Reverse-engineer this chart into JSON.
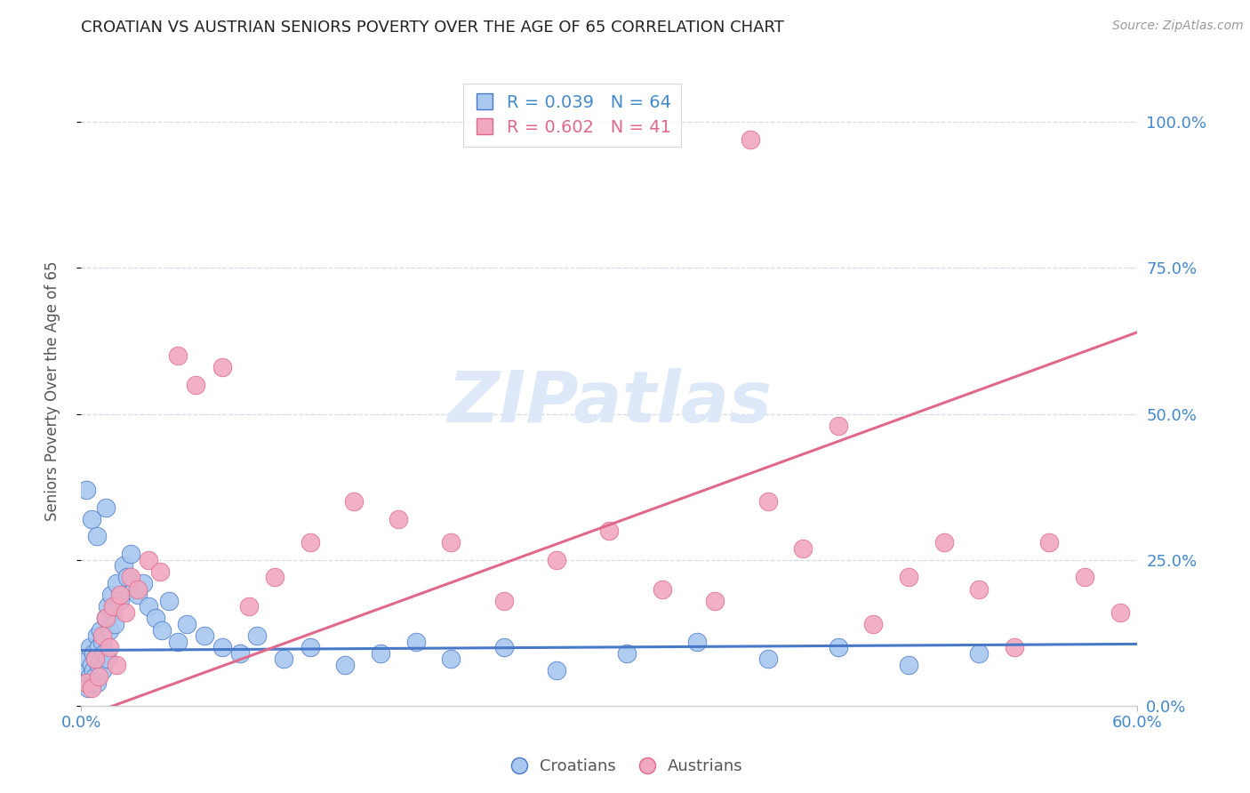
{
  "title": "CROATIAN VS AUSTRIAN SENIORS POVERTY OVER THE AGE OF 65 CORRELATION CHART",
  "source": "Source: ZipAtlas.com",
  "ylabel": "Seniors Poverty Over the Age of 65",
  "yticks_right": [
    0.0,
    0.25,
    0.5,
    0.75,
    1.0
  ],
  "ytick_labels_right": [
    "0.0%",
    "25.0%",
    "50.0%",
    "75.0%",
    "100.0%"
  ],
  "xlim": [
    0.0,
    0.6
  ],
  "ylim": [
    0.0,
    1.08
  ],
  "croatian_R": 0.039,
  "croatian_N": 64,
  "austrian_R": 0.602,
  "austrian_N": 41,
  "croatian_color": "#a8c8f0",
  "austrian_color": "#f0a8c0",
  "croatian_line_color": "#4878c8",
  "austrian_line_color": "#e06888",
  "background_color": "#ffffff",
  "grid_color": "#d0daea",
  "axis_color": "#4488cc",
  "watermark_color": "#dde8f8",
  "croatian_regr_intercept": 0.095,
  "croatian_regr_slope": 0.018,
  "austrian_regr_intercept": -0.02,
  "austrian_regr_slope": 1.1,
  "croatian_points_x": [
    0.002,
    0.003,
    0.004,
    0.004,
    0.005,
    0.005,
    0.006,
    0.006,
    0.007,
    0.007,
    0.008,
    0.008,
    0.009,
    0.009,
    0.01,
    0.01,
    0.011,
    0.011,
    0.012,
    0.012,
    0.013,
    0.014,
    0.015,
    0.015,
    0.016,
    0.017,
    0.018,
    0.019,
    0.02,
    0.022,
    0.024,
    0.026,
    0.028,
    0.03,
    0.032,
    0.035,
    0.038,
    0.042,
    0.046,
    0.05,
    0.055,
    0.06,
    0.07,
    0.08,
    0.09,
    0.1,
    0.115,
    0.13,
    0.15,
    0.17,
    0.19,
    0.21,
    0.24,
    0.27,
    0.31,
    0.35,
    0.39,
    0.43,
    0.47,
    0.51,
    0.003,
    0.006,
    0.009,
    0.014
  ],
  "croatian_points_y": [
    0.04,
    0.06,
    0.03,
    0.08,
    0.05,
    0.1,
    0.04,
    0.07,
    0.06,
    0.09,
    0.05,
    0.08,
    0.04,
    0.12,
    0.07,
    0.1,
    0.08,
    0.13,
    0.06,
    0.11,
    0.09,
    0.15,
    0.08,
    0.17,
    0.13,
    0.19,
    0.16,
    0.14,
    0.21,
    0.18,
    0.24,
    0.22,
    0.26,
    0.2,
    0.19,
    0.21,
    0.17,
    0.15,
    0.13,
    0.18,
    0.11,
    0.14,
    0.12,
    0.1,
    0.09,
    0.12,
    0.08,
    0.1,
    0.07,
    0.09,
    0.11,
    0.08,
    0.1,
    0.06,
    0.09,
    0.11,
    0.08,
    0.1,
    0.07,
    0.09,
    0.37,
    0.32,
    0.29,
    0.34
  ],
  "austrian_points_x": [
    0.003,
    0.006,
    0.008,
    0.01,
    0.012,
    0.014,
    0.016,
    0.018,
    0.02,
    0.022,
    0.025,
    0.028,
    0.032,
    0.038,
    0.045,
    0.055,
    0.065,
    0.08,
    0.095,
    0.11,
    0.13,
    0.155,
    0.18,
    0.21,
    0.24,
    0.27,
    0.3,
    0.33,
    0.36,
    0.38,
    0.39,
    0.41,
    0.43,
    0.45,
    0.47,
    0.49,
    0.51,
    0.53,
    0.55,
    0.57,
    0.59
  ],
  "austrian_points_y": [
    0.04,
    0.03,
    0.08,
    0.05,
    0.12,
    0.15,
    0.1,
    0.17,
    0.07,
    0.19,
    0.16,
    0.22,
    0.2,
    0.25,
    0.23,
    0.6,
    0.55,
    0.58,
    0.17,
    0.22,
    0.28,
    0.35,
    0.32,
    0.28,
    0.18,
    0.25,
    0.3,
    0.2,
    0.18,
    0.97,
    0.35,
    0.27,
    0.48,
    0.14,
    0.22,
    0.28,
    0.2,
    0.1,
    0.28,
    0.22,
    0.16
  ]
}
